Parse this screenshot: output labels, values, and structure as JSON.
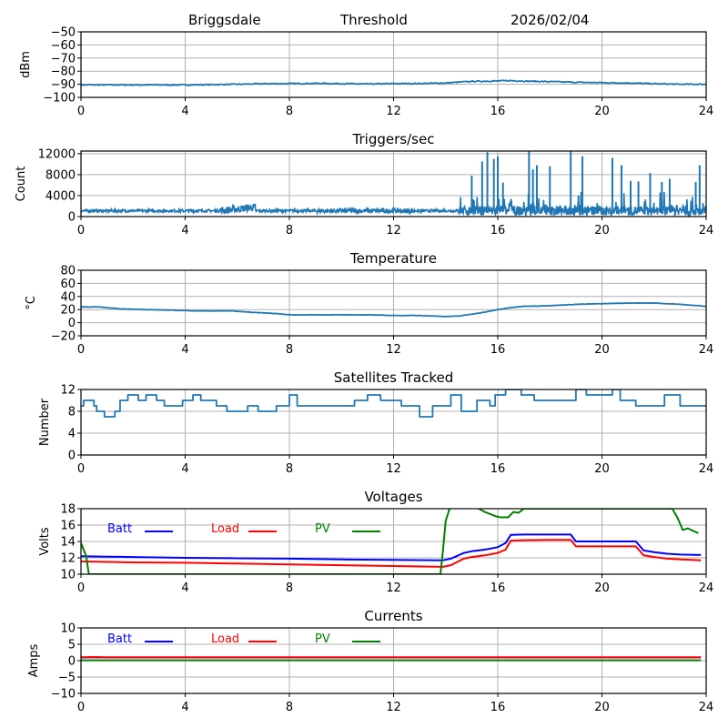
{
  "header": {
    "station": "Briggsdale",
    "mode": "Threshold",
    "date": "2026/02/04"
  },
  "colors": {
    "trace": "#1f77b4",
    "batt": "#0000ff",
    "load": "#ff0000",
    "pv": "#008000",
    "grid": "#b0b0b0"
  },
  "chart_data": [
    {
      "id": "threshold",
      "type": "line",
      "title": "",
      "xlabel": "",
      "ylabel": "dBm",
      "xlim": [
        0,
        24
      ],
      "ylim": [
        -100,
        -50
      ],
      "xticks": [
        0,
        4,
        8,
        12,
        16,
        20,
        24
      ],
      "yticks": [
        -100,
        -90,
        -80,
        -70,
        -60,
        -50
      ],
      "ytick_labels": [
        "−100",
        "−90",
        "−80",
        "−70",
        "−60",
        "−50"
      ],
      "grid": true,
      "series": [
        {
          "name": "threshold",
          "color": "#1f77b4",
          "x": [
            0,
            2,
            4,
            5,
            6,
            6.5,
            7,
            8,
            9,
            10,
            11,
            12,
            13,
            14,
            15,
            16,
            16.5,
            17,
            18,
            19,
            20,
            21,
            22,
            23,
            24
          ],
          "y": [
            -90.5,
            -90.5,
            -90.5,
            -90.3,
            -90,
            -89.8,
            -89.6,
            -89.5,
            -89.3,
            -89.5,
            -89.8,
            -89.5,
            -89.4,
            -89,
            -87.8,
            -87.5,
            -87.2,
            -87.6,
            -88,
            -88.5,
            -88.8,
            -89,
            -89.6,
            -90,
            -90
          ]
        }
      ]
    },
    {
      "id": "triggers",
      "type": "line",
      "title": "Triggers/sec",
      "xlabel": "",
      "ylabel": "Count",
      "xlim": [
        0,
        24
      ],
      "ylim": [
        0,
        12500
      ],
      "xticks": [
        0,
        4,
        8,
        12,
        16,
        20,
        24
      ],
      "yticks": [
        0,
        4000,
        8000,
        12000
      ],
      "ytick_labels": [
        "0",
        "4000",
        "8000",
        "12000"
      ],
      "grid": true,
      "baseline": 1100,
      "spikes": [
        {
          "x": 15.0,
          "y": 7800
        },
        {
          "x": 15.4,
          "y": 10500
        },
        {
          "x": 15.6,
          "y": 12300
        },
        {
          "x": 15.85,
          "y": 11000
        },
        {
          "x": 16.0,
          "y": 11500
        },
        {
          "x": 16.2,
          "y": 6500
        },
        {
          "x": 17.2,
          "y": 12500
        },
        {
          "x": 17.35,
          "y": 9000
        },
        {
          "x": 17.5,
          "y": 9800
        },
        {
          "x": 18.0,
          "y": 9600
        },
        {
          "x": 18.8,
          "y": 12500
        },
        {
          "x": 19.1,
          "y": 4000
        },
        {
          "x": 19.25,
          "y": 11500
        },
        {
          "x": 20.4,
          "y": 11200
        },
        {
          "x": 20.75,
          "y": 9800
        },
        {
          "x": 21.1,
          "y": 6800
        },
        {
          "x": 21.4,
          "y": 6700
        },
        {
          "x": 21.85,
          "y": 8300
        },
        {
          "x": 22.3,
          "y": 6600
        },
        {
          "x": 22.6,
          "y": 7200
        },
        {
          "x": 23.6,
          "y": 6600
        },
        {
          "x": 23.75,
          "y": 9800
        }
      ]
    },
    {
      "id": "temperature",
      "type": "line",
      "title": "Temperature",
      "xlabel": "",
      "ylabel": "°C",
      "xlim": [
        0,
        24
      ],
      "ylim": [
        -20,
        80
      ],
      "xticks": [
        0,
        4,
        8,
        12,
        16,
        20,
        24
      ],
      "yticks": [
        -20,
        0,
        20,
        40,
        60,
        80
      ],
      "ytick_labels": [
        "−20",
        "0",
        "20",
        "40",
        "60",
        "80"
      ],
      "grid": true,
      "series": [
        {
          "name": "temperature",
          "color": "#1f77b4",
          "x": [
            0,
            0.7,
            1.5,
            2.5,
            3.5,
            4.5,
            5.8,
            6.5,
            7.5,
            8,
            9,
            10,
            11,
            12,
            13,
            14,
            14.5,
            15,
            15.5,
            16,
            16.5,
            17,
            18,
            19,
            20,
            21,
            22,
            23,
            24
          ],
          "y": [
            24,
            24,
            21,
            20,
            19,
            18,
            18,
            16,
            14,
            12,
            12,
            12,
            12,
            11,
            11,
            9.5,
            10,
            13,
            16,
            20,
            23,
            25,
            26,
            28,
            29,
            30,
            30,
            28,
            25
          ]
        }
      ]
    },
    {
      "id": "satellites",
      "type": "line",
      "title": "Satellites Tracked",
      "xlabel": "",
      "ylabel": "Number",
      "xlim": [
        0,
        24
      ],
      "ylim": [
        0,
        12
      ],
      "xticks": [
        0,
        4,
        8,
        12,
        16,
        20,
        24
      ],
      "yticks": [
        0,
        4,
        8,
        12
      ],
      "ytick_labels": [
        "0",
        "4",
        "8",
        "12"
      ],
      "grid": true,
      "series": [
        {
          "name": "satellites",
          "color": "#1f77b4",
          "step": true,
          "x": [
            0,
            0.1,
            0.4,
            0.5,
            0.6,
            0.9,
            1.3,
            1.5,
            1.8,
            2.2,
            2.5,
            2.9,
            3.2,
            3.5,
            3.9,
            4.3,
            4.6,
            5.2,
            5.6,
            6.4,
            6.8,
            7.5,
            7.7,
            8.0,
            8.3,
            9.0,
            9.6,
            10.5,
            11.0,
            11.5,
            12.3,
            12.7,
            13.0,
            13.5,
            14.2,
            14.6,
            15.2,
            15.7,
            15.9,
            16.3,
            16.9,
            17.4,
            18.3,
            19.0,
            19.4,
            20.0,
            20.4,
            20.7,
            21.3,
            22.0,
            22.4,
            23.0,
            23.5,
            24
          ],
          "y": [
            9,
            10,
            10,
            9,
            8,
            7,
            8,
            10,
            11,
            10,
            11,
            10,
            9,
            9,
            10,
            11,
            10,
            9,
            8,
            9,
            8,
            9,
            9,
            11,
            9,
            9,
            9,
            10,
            11,
            10,
            9,
            9,
            7,
            9,
            11,
            8,
            10,
            9,
            11,
            12,
            11,
            10,
            10,
            12,
            11,
            11,
            12,
            10,
            9,
            9,
            11,
            9,
            9,
            9
          ]
        }
      ]
    },
    {
      "id": "voltages",
      "type": "line",
      "title": "Voltages",
      "xlabel": "",
      "ylabel": "Volts",
      "xlim": [
        0,
        24
      ],
      "ylim": [
        10,
        18
      ],
      "xticks": [
        0,
        4,
        8,
        12,
        16,
        20,
        24
      ],
      "yticks": [
        10,
        12,
        14,
        16,
        18
      ],
      "ytick_labels": [
        "10",
        "12",
        "14",
        "16",
        "18"
      ],
      "grid": true,
      "legend": {
        "placement": "top-left",
        "entries": [
          "Batt",
          "Load",
          "PV"
        ]
      },
      "series": [
        {
          "name": "Batt",
          "color": "#0000ff",
          "x": [
            0,
            2,
            4,
            6,
            8,
            10,
            12,
            13.9,
            14.2,
            14.7,
            15,
            15.5,
            16,
            16.3,
            16.5,
            17,
            18,
            18.8,
            19,
            20,
            21,
            21.3,
            21.6,
            22,
            22.5,
            23,
            23.8
          ],
          "y": [
            12.2,
            12.1,
            12.0,
            11.95,
            11.9,
            11.8,
            11.75,
            11.7,
            11.9,
            12.6,
            12.8,
            13.0,
            13.3,
            13.8,
            14.8,
            14.85,
            14.85,
            14.85,
            14.0,
            14.0,
            14.0,
            14.0,
            12.9,
            12.7,
            12.5,
            12.4,
            12.35
          ]
        },
        {
          "name": "Load",
          "color": "#ff0000",
          "x": [
            0,
            2,
            4,
            6,
            8,
            10,
            12,
            13.9,
            14.2,
            14.7,
            15,
            15.5,
            16,
            16.3,
            16.5,
            17,
            18,
            18.8,
            19,
            20,
            21,
            21.3,
            21.6,
            22,
            22.5,
            23,
            23.8
          ],
          "y": [
            11.55,
            11.45,
            11.4,
            11.3,
            11.2,
            11.1,
            11.0,
            10.9,
            11.1,
            11.9,
            12.1,
            12.3,
            12.6,
            13.0,
            14.1,
            14.15,
            14.2,
            14.2,
            13.4,
            13.4,
            13.4,
            13.4,
            12.3,
            12.1,
            11.9,
            11.8,
            11.7
          ]
        },
        {
          "name": "PV",
          "color": "#008000",
          "x": [
            0,
            0.1,
            0.2,
            0.3,
            13.8,
            13.9,
            14.0,
            14.2,
            15.0,
            15.5,
            15.9,
            16.1,
            16.4,
            16.6,
            16.8,
            17.0,
            22.7,
            22.9,
            23.1,
            23.3,
            23.5,
            23.7
          ],
          "y": [
            13.8,
            13.0,
            12.2,
            10.0,
            10.0,
            13.0,
            16.5,
            18.5,
            18.5,
            17.6,
            17.1,
            16.95,
            16.95,
            17.6,
            17.5,
            18.0,
            18.0,
            16.9,
            15.4,
            15.6,
            15.3,
            15.0
          ]
        }
      ]
    },
    {
      "id": "currents",
      "type": "line",
      "title": "Currents",
      "xlabel": "",
      "ylabel": "Amps",
      "xlim": [
        0,
        24
      ],
      "ylim": [
        -10,
        10
      ],
      "xticks": [
        0,
        4,
        8,
        12,
        16,
        20,
        24
      ],
      "yticks": [
        -10,
        -5,
        0,
        5,
        10
      ],
      "ytick_labels": [
        "−10",
        "−5",
        "0",
        "5",
        "10"
      ],
      "grid": true,
      "legend": {
        "placement": "top-left",
        "entries": [
          "Batt",
          "Load",
          "PV"
        ]
      },
      "series": [
        {
          "name": "Batt",
          "color": "#0000ff",
          "x": [
            0,
            23.8
          ],
          "y": [
            1.0,
            1.0
          ]
        },
        {
          "name": "Load",
          "color": "#ff0000",
          "x": [
            0,
            0.5,
            1,
            23.8
          ],
          "y": [
            1.0,
            1.1,
            1.0,
            1.0
          ]
        },
        {
          "name": "PV",
          "color": "#008000",
          "x": [
            0,
            23.8
          ],
          "y": [
            0.1,
            0.1
          ]
        }
      ]
    }
  ]
}
